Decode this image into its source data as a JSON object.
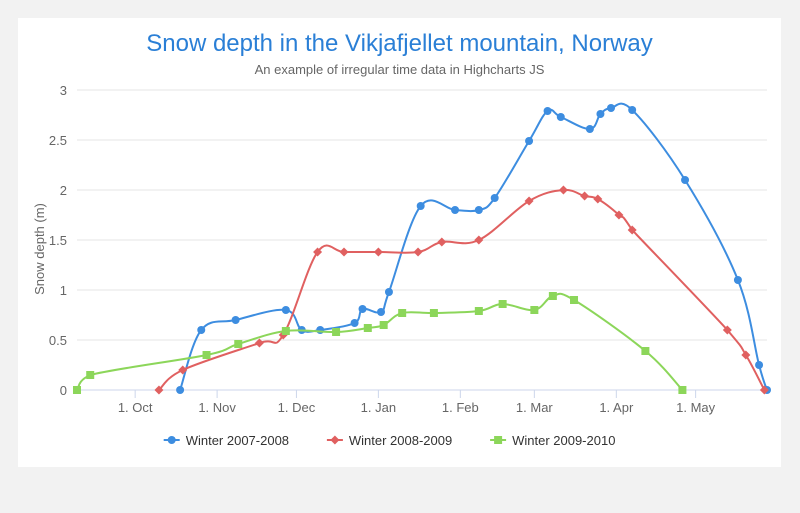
{
  "chart_data": {
    "type": "line",
    "title": "Snow depth in the Vikjafjellet mountain, Norway",
    "subtitle": "An example of irregular time data in Highcharts JS",
    "xlabel": "",
    "ylabel": "Snow depth (m)",
    "ylim": [
      0,
      3
    ],
    "y_ticks": [
      "0",
      "0.5",
      "1",
      "1.5",
      "2",
      "2.5",
      "3"
    ],
    "x_range": [
      "1970-09-09",
      "1971-05-28"
    ],
    "x_ticks": [
      {
        "date": "1970-10-01",
        "label": "1. Oct"
      },
      {
        "date": "1970-11-01",
        "label": "1. Nov"
      },
      {
        "date": "1970-12-01",
        "label": "1. Dec"
      },
      {
        "date": "1971-01-01",
        "label": "1. Jan"
      },
      {
        "date": "1971-02-01",
        "label": "1. Feb"
      },
      {
        "date": "1971-03-01",
        "label": "1. Mar"
      },
      {
        "date": "1971-04-01",
        "label": "1. Apr"
      },
      {
        "date": "1971-05-01",
        "label": "1. May"
      }
    ],
    "grid": true,
    "legend_position": "bottom-center",
    "series": [
      {
        "name": "Winter 2007-2008",
        "color": "#3d8de0",
        "marker": "circle",
        "points": [
          [
            "1970-10-18",
            0
          ],
          [
            "1970-10-26",
            0.6
          ],
          [
            "1970-11-08",
            0.7
          ],
          [
            "1970-11-27",
            0.8
          ],
          [
            "1970-12-03",
            0.6
          ],
          [
            "1970-12-10",
            0.6
          ],
          [
            "1970-12-23",
            0.67
          ],
          [
            "1970-12-26",
            0.81
          ],
          [
            "1971-01-02",
            0.78
          ],
          [
            "1971-01-05",
            0.98
          ],
          [
            "1971-01-17",
            1.84
          ],
          [
            "1971-01-30",
            1.8
          ],
          [
            "1971-02-08",
            1.8
          ],
          [
            "1971-02-14",
            1.92
          ],
          [
            "1971-02-27",
            2.49
          ],
          [
            "1971-03-06",
            2.79
          ],
          [
            "1971-03-11",
            2.73
          ],
          [
            "1971-03-22",
            2.61
          ],
          [
            "1971-03-26",
            2.76
          ],
          [
            "1971-03-30",
            2.82
          ],
          [
            "1971-04-07",
            2.8
          ],
          [
            "1971-04-27",
            2.1
          ],
          [
            "1971-05-17",
            1.1
          ],
          [
            "1971-05-25",
            0.25
          ],
          [
            "1971-05-28",
            0
          ]
        ]
      },
      {
        "name": "Winter 2008-2009",
        "color": "#e06060",
        "marker": "diamond",
        "points": [
          [
            "1970-10-10",
            0
          ],
          [
            "1970-10-19",
            0.2
          ],
          [
            "1970-11-17",
            0.47
          ],
          [
            "1970-11-26",
            0.55
          ],
          [
            "1970-12-09",
            1.38
          ],
          [
            "1970-12-19",
            1.38
          ],
          [
            "1971-01-01",
            1.38
          ],
          [
            "1971-01-16",
            1.38
          ],
          [
            "1971-01-25",
            1.48
          ],
          [
            "1971-02-08",
            1.5
          ],
          [
            "1971-02-27",
            1.89
          ],
          [
            "1971-03-12",
            2.0
          ],
          [
            "1971-03-20",
            1.94
          ],
          [
            "1971-03-25",
            1.91
          ],
          [
            "1971-04-02",
            1.75
          ],
          [
            "1971-04-07",
            1.6
          ],
          [
            "1971-05-13",
            0.6
          ],
          [
            "1971-05-20",
            0.35
          ],
          [
            "1971-05-27",
            0
          ]
        ]
      },
      {
        "name": "Winter 2009-2010",
        "color": "#8cd65a",
        "marker": "square",
        "points": [
          [
            "1970-09-09",
            0
          ],
          [
            "1970-09-14",
            0.15
          ],
          [
            "1970-10-28",
            0.35
          ],
          [
            "1970-11-09",
            0.46
          ],
          [
            "1970-11-27",
            0.59
          ],
          [
            "1970-12-16",
            0.58
          ],
          [
            "1970-12-28",
            0.62
          ],
          [
            "1971-01-03",
            0.65
          ],
          [
            "1971-01-10",
            0.77
          ],
          [
            "1971-01-22",
            0.77
          ],
          [
            "1971-02-08",
            0.79
          ],
          [
            "1971-02-17",
            0.86
          ],
          [
            "1971-03-01",
            0.8
          ],
          [
            "1971-03-08",
            0.94
          ],
          [
            "1971-03-16",
            0.9
          ],
          [
            "1971-04-12",
            0.39
          ],
          [
            "1971-04-26",
            0
          ]
        ]
      }
    ]
  }
}
